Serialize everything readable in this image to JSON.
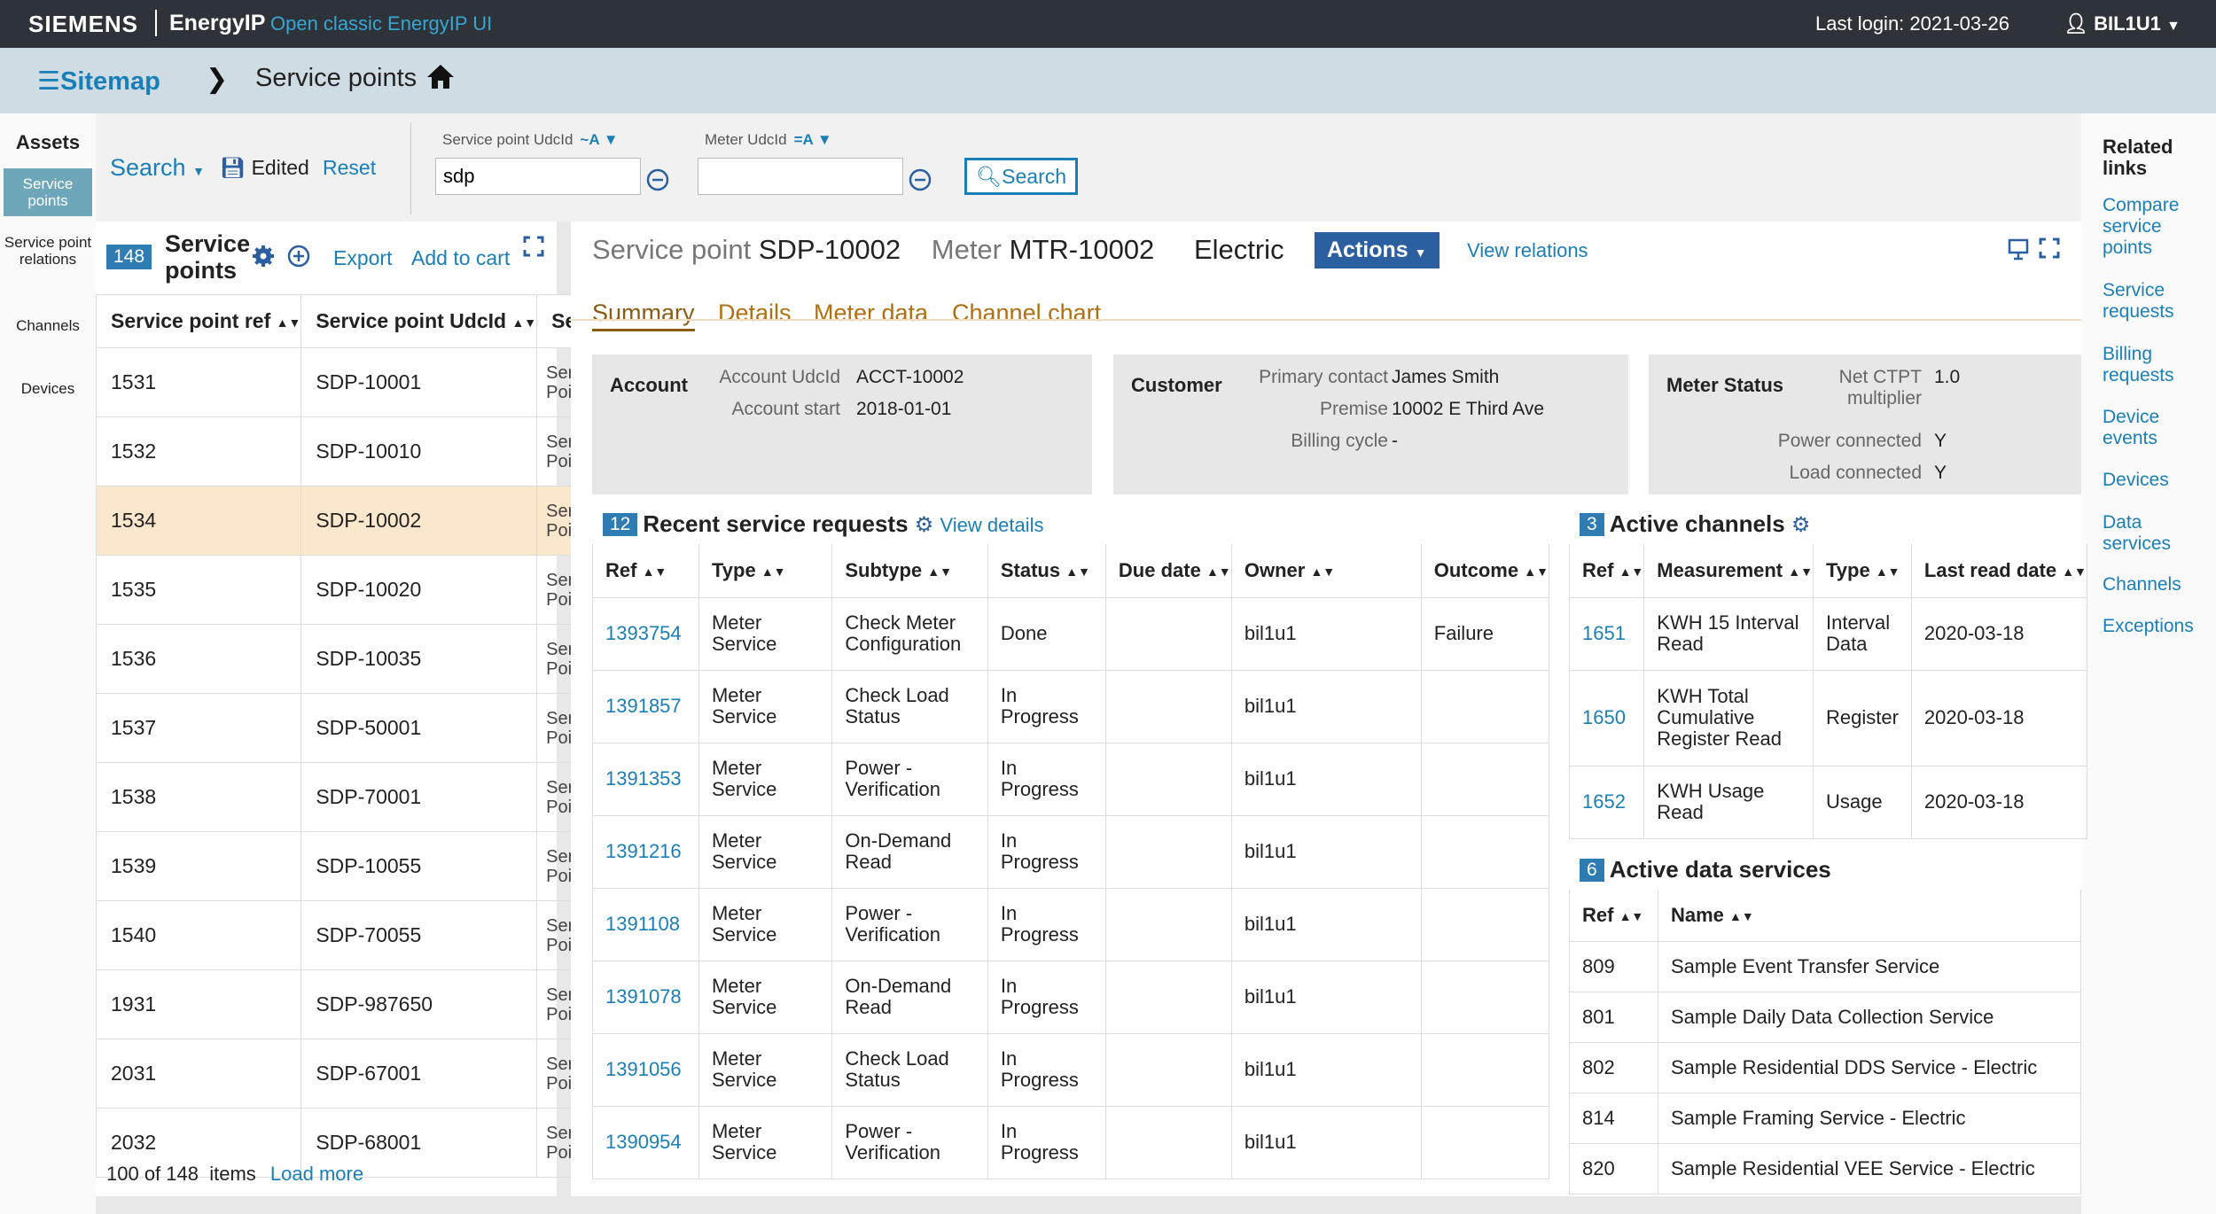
{
  "topbar": {
    "brand": "SIEMENS",
    "product": "EnergyIP",
    "classic_link": "Open classic EnergyIP UI",
    "last_login": "Last login: 2021-03-26",
    "user": "BIL1U1"
  },
  "breadcrumb": {
    "sitemap": "Sitemap",
    "title": "Service points"
  },
  "rail": {
    "header": "Assets",
    "items": [
      "Service points",
      "Service point relations",
      "Channels",
      "Devices"
    ]
  },
  "search": {
    "menu_label": "Search",
    "edited_label": "Edited",
    "reset_label": "Reset",
    "field1_label": "Service point UdcId",
    "field1_op": "~A",
    "field1_value": "sdp",
    "field2_label": "Meter UdcId",
    "field2_op": "=A",
    "field2_value": "",
    "search_button": "Search"
  },
  "related": {
    "header": "Related links",
    "links": [
      "Compare service points",
      "Service requests",
      "Billing requests",
      "Device events",
      "Devices",
      "Data services",
      "Channels",
      "Exceptions"
    ]
  },
  "list": {
    "count": "148",
    "title": "Service points",
    "export": "Export",
    "add_to_cart": "Add to cart",
    "columns": [
      "Service point ref",
      "Service point UdcId",
      "Ser"
    ],
    "rows": [
      {
        "ref": "1531",
        "udcid": "SDP-10001",
        "type": "Ser Poi"
      },
      {
        "ref": "1532",
        "udcid": "SDP-10010",
        "type": "Ser Poi"
      },
      {
        "ref": "1534",
        "udcid": "SDP-10002",
        "type": "Ser Poi"
      },
      {
        "ref": "1535",
        "udcid": "SDP-10020",
        "type": "Ser Poi"
      },
      {
        "ref": "1536",
        "udcid": "SDP-10035",
        "type": "Ser Poi"
      },
      {
        "ref": "1537",
        "udcid": "SDP-50001",
        "type": "Ser Poi"
      },
      {
        "ref": "1538",
        "udcid": "SDP-70001",
        "type": "Ser Poi"
      },
      {
        "ref": "1539",
        "udcid": "SDP-10055",
        "type": "Ser Poi"
      },
      {
        "ref": "1540",
        "udcid": "SDP-70055",
        "type": "Ser Poi"
      },
      {
        "ref": "1931",
        "udcid": "SDP-987650",
        "type": "Ser Poi"
      },
      {
        "ref": "2031",
        "udcid": "SDP-67001",
        "type": "Ser Poi"
      },
      {
        "ref": "2032",
        "udcid": "SDP-68001",
        "type": "Ser Poi"
      }
    ],
    "footer_text": "100 of 148  items",
    "load_more": "Load more"
  },
  "detail": {
    "sp_label": "Service point",
    "sp_value": "SDP-10002",
    "meter_label": "Meter",
    "meter_value": "MTR-10002",
    "commodity": "Electric",
    "actions": "Actions",
    "view_relations": "View relations",
    "tabs": [
      "Summary",
      "Details",
      "Meter data",
      "Channel chart"
    ],
    "account": {
      "title": "Account",
      "udcid_label": "Account UdcId",
      "udcid": "ACCT-10002",
      "start_label": "Account start",
      "start": "2018-01-01"
    },
    "customer": {
      "title": "Customer",
      "contact_label": "Primary contact",
      "contact": "James Smith",
      "premise_label": "Premise",
      "premise": "10002 E Third Ave",
      "billing_label": "Billing cycle",
      "billing": "-"
    },
    "meter_status": {
      "title": "Meter Status",
      "ctpt_label": "Net CTPT multiplier",
      "ctpt": "1.0",
      "power_label": "Power connected",
      "power": "Y",
      "load_label": "Load connected",
      "load": "Y"
    },
    "service_requests": {
      "count": "12",
      "title": "Recent service requests",
      "view_details": "View details",
      "columns": [
        "Ref",
        "Type",
        "Subtype",
        "Status",
        "Due date",
        "Owner",
        "Outcome"
      ],
      "rows": [
        {
          "ref": "1393754",
          "type": "Meter Service",
          "subtype": "Check Meter Configuration",
          "status": "Done",
          "due": "",
          "owner": "bil1u1",
          "outcome": "Failure"
        },
        {
          "ref": "1391857",
          "type": "Meter Service",
          "subtype": "Check Load Status",
          "status": "In Progress",
          "due": "",
          "owner": "bil1u1",
          "outcome": ""
        },
        {
          "ref": "1391353",
          "type": "Meter Service",
          "subtype": "Power - Verification",
          "status": "In Progress",
          "due": "",
          "owner": "bil1u1",
          "outcome": ""
        },
        {
          "ref": "1391216",
          "type": "Meter Service",
          "subtype": "On-Demand Read",
          "status": "In Progress",
          "due": "",
          "owner": "bil1u1",
          "outcome": ""
        },
        {
          "ref": "1391108",
          "type": "Meter Service",
          "subtype": "Power - Verification",
          "status": "In Progress",
          "due": "",
          "owner": "bil1u1",
          "outcome": ""
        },
        {
          "ref": "1391078",
          "type": "Meter Service",
          "subtype": "On-Demand Read",
          "status": "In Progress",
          "due": "",
          "owner": "bil1u1",
          "outcome": ""
        },
        {
          "ref": "1391056",
          "type": "Meter Service",
          "subtype": "Check Load Status",
          "status": "In Progress",
          "due": "",
          "owner": "bil1u1",
          "outcome": ""
        },
        {
          "ref": "1390954",
          "type": "Meter Service",
          "subtype": "Power - Verification",
          "status": "In Progress",
          "due": "",
          "owner": "bil1u1",
          "outcome": ""
        }
      ]
    },
    "active_channels": {
      "count": "3",
      "title": "Active channels",
      "columns": [
        "Ref",
        "Measurement",
        "Type",
        "Last read date"
      ],
      "rows": [
        {
          "ref": "1651",
          "measurement": "KWH 15 Interval Read",
          "type": "Interval Data",
          "last_read": "2020-03-18"
        },
        {
          "ref": "1650",
          "measurement": "KWH Total Cumulative Register Read",
          "type": "Register",
          "last_read": "2020-03-18"
        },
        {
          "ref": "1652",
          "measurement": "KWH Usage Read",
          "type": "Usage",
          "last_read": "2020-03-18"
        }
      ]
    },
    "data_services": {
      "count": "6",
      "title": "Active data services",
      "columns": [
        "Ref",
        "Name"
      ],
      "rows": [
        {
          "ref": "809",
          "name": "Sample Event Transfer Service"
        },
        {
          "ref": "801",
          "name": "Sample Daily Data Collection Service"
        },
        {
          "ref": "802",
          "name": "Sample Residential DDS Service - Electric"
        },
        {
          "ref": "814",
          "name": "Sample Framing Service - Electric"
        },
        {
          "ref": "820",
          "name": "Sample Residential VEE Service - Electric"
        }
      ]
    }
  }
}
